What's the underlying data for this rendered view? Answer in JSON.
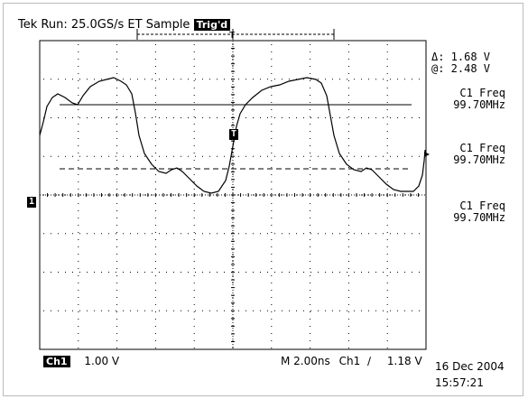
{
  "status": {
    "prefix": "Tek",
    "run_state": "Run: 25.0GS/s ET Sample",
    "trigger_badge": "Trig'd"
  },
  "cursors": {
    "delta": "Δ: 1.68 V",
    "at": "@: 2.48 V"
  },
  "measurements": [
    {
      "label": "C1 Freq",
      "value": "99.70MHz"
    },
    {
      "label": "C1 Freq",
      "value": "99.70MHz"
    },
    {
      "label": "C1 Freq",
      "value": "99.70MHz"
    }
  ],
  "markers": {
    "trigger_marker": "T",
    "channel_marker": "1"
  },
  "bottom_bar": {
    "channel_badge": "Ch1",
    "volts_per_div": "1.00 V",
    "timebase": "M 2.00ns",
    "trigger_source": "Ch1",
    "trigger_slope": "∕",
    "trigger_level": "1.18 V",
    "date": "16 Dec 2004",
    "time": "15:57:21"
  },
  "colors": {
    "trace": "#000000",
    "grid": "#000000",
    "background": "#ffffff"
  }
}
